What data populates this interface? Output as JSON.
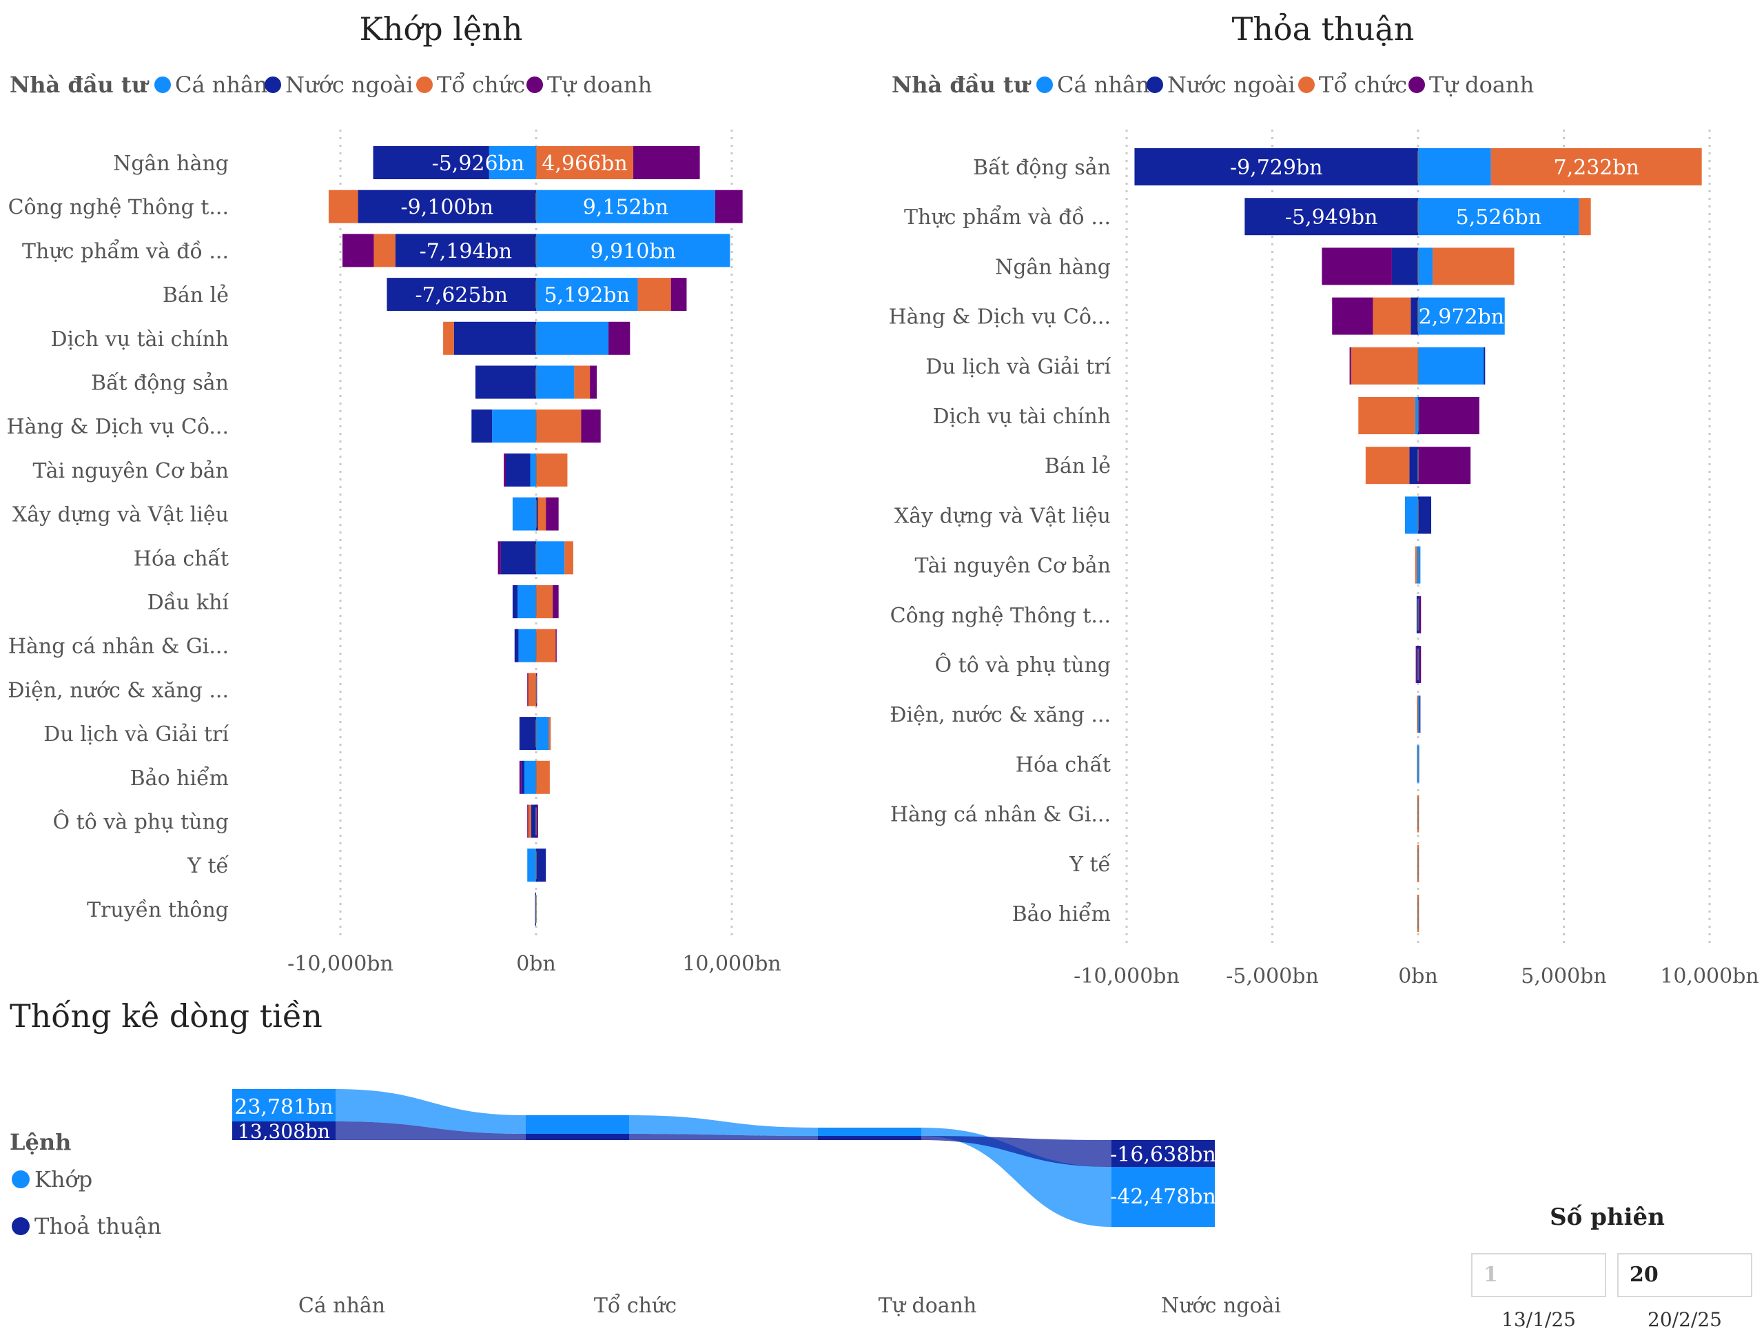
{
  "colors": {
    "ca_nhan": "#118DFF",
    "nuoc_ngoai": "#12239E",
    "to_chuc": "#E66C37",
    "tu_doanh": "#6B007B",
    "khop": "#118DFF",
    "thoa_thuan": "#12239E",
    "text": "#444444",
    "grid": "#c8c8c8"
  },
  "legend": {
    "title": "Nhà đầu tư",
    "items": [
      "Cá nhân",
      "Nước ngoài",
      "Tổ chức",
      "Tự doanh"
    ]
  },
  "chart_data": [
    {
      "type": "bar",
      "orientation": "horizontal-stacked-diverging",
      "title": "Khớp lệnh",
      "legend_title": "Nhà đầu tư",
      "xlim": [
        -10000,
        10000
      ],
      "xticks": [
        -10000,
        0,
        10000
      ],
      "xtick_labels": [
        "-10,000bn",
        "0bn",
        "10,000bn"
      ],
      "grid": "vertical dotted",
      "categories": [
        "Ngân hàng",
        "Công nghệ Thông t...",
        "Thực phẩm và đồ ...",
        "Bán lẻ",
        "Dịch vụ tài chính",
        "Bất động sản",
        "Hàng & Dịch vụ Cô...",
        "Tài nguyên Cơ bản",
        "Xây dựng và Vật liệu",
        "Hóa chất",
        "Dầu khí",
        "Hàng cá nhân & Gi...",
        "Điện, nước & xăng ...",
        "Du lịch và Giải trí",
        "Bảo hiểm",
        "Ô tô và phụ tùng",
        "Y tế",
        "Truyền thông"
      ],
      "series": [
        {
          "name": "Cá nhân",
          "values": [
            -2400,
            0,
            0,
            0,
            0,
            0,
            -2250,
            -300,
            -1200,
            0,
            -950,
            -900,
            150,
            0,
            -600,
            350,
            -450,
            0
          ]
        },
        {
          "name": "Nước ngoài",
          "values": [
            -5926,
            -9100,
            -7194,
            -7625,
            -4200,
            -3100,
            -1050,
            -1250,
            0,
            -1800,
            -250,
            -200,
            300,
            -850,
            -150,
            -250,
            0,
            -50
          ]
        },
        {
          "name": "Tổ chức",
          "values": [
            0,
            -1500,
            -1100,
            0,
            -550,
            0,
            0,
            0,
            0,
            0,
            0,
            0,
            -400,
            0,
            0,
            -150,
            0,
            0
          ]
        },
        {
          "name": "Tự doanh",
          "values": [
            0,
            0,
            -1600,
            0,
            0,
            0,
            0,
            -100,
            0,
            -150,
            0,
            0,
            -50,
            0,
            -100,
            -50,
            0,
            0
          ]
        },
        {
          "name": "Cá nhân",
          "values": [
            0,
            9152,
            9910,
            5192,
            3700,
            1950,
            0,
            0,
            0,
            1450,
            0,
            0,
            0,
            650,
            0,
            0,
            0,
            0
          ]
        },
        {
          "name": "Nước ngoài",
          "values": [
            0,
            0,
            0,
            0,
            0,
            0,
            0,
            0,
            100,
            0,
            0,
            0,
            0,
            0,
            0,
            0,
            500,
            0
          ]
        },
        {
          "name": "Tổ chức",
          "values": [
            4966,
            0,
            0,
            1700,
            0,
            800,
            2300,
            1600,
            400,
            450,
            850,
            1000,
            0,
            100,
            700,
            0,
            0,
            0
          ]
        },
        {
          "name": "Tự doanh",
          "values": [
            3400,
            1400,
            0,
            800,
            1100,
            350,
            1000,
            0,
            650,
            0,
            300,
            50,
            50,
            0,
            0,
            100,
            0,
            0
          ]
        }
      ],
      "data_labels": {
        "Ngân hàng": [
          "-5,926bn",
          "4,966bn"
        ],
        "Công nghệ Thông t...": [
          "-9,100bn",
          "9,152bn"
        ],
        "Thực phẩm và đồ ...": [
          "-7,194bn",
          "9,910bn"
        ],
        "Bán lẻ": [
          "-7,625bn",
          "5,192bn"
        ]
      }
    },
    {
      "type": "bar",
      "orientation": "horizontal-stacked-diverging",
      "title": "Thỏa thuận",
      "legend_title": "Nhà đầu tư",
      "xlim": [
        -10000,
        10000
      ],
      "xticks": [
        -10000,
        -5000,
        0,
        5000,
        10000
      ],
      "xtick_labels": [
        "-10,000bn",
        "-5,000bn",
        "0bn",
        "5,000bn",
        "10,000bn"
      ],
      "grid": "vertical dotted",
      "categories": [
        "Bất động sản",
        "Thực phẩm và đồ ...",
        "Ngân hàng",
        "Hàng & Dịch vụ Cô...",
        "Du lịch và Giải trí",
        "Dịch vụ tài chính",
        "Bán lẻ",
        "Xây dựng và Vật liệu",
        "Tài nguyên Cơ bản",
        "Công nghệ Thông t...",
        "Ô tô và phụ tùng",
        "Điện, nước & xăng ...",
        "Hóa chất",
        "Hàng cá nhân & Gi...",
        "Y tế",
        "Bảo hiểm"
      ],
      "series": [
        {
          "name": "Cá nhân",
          "values": [
            0,
            0,
            0,
            0,
            0,
            -100,
            0,
            -450,
            -50,
            0,
            0,
            0,
            -40,
            0,
            0,
            0
          ]
        },
        {
          "name": "Nước ngoài",
          "values": [
            -9729,
            -5949,
            -900,
            -250,
            0,
            0,
            -300,
            0,
            0,
            -50,
            -50,
            0,
            0,
            0,
            0,
            0
          ]
        },
        {
          "name": "Tổ chức",
          "values": [
            0,
            0,
            0,
            -1300,
            -2300,
            -1950,
            -1500,
            0,
            -50,
            0,
            0,
            -40,
            0,
            -30,
            -30,
            -30
          ]
        },
        {
          "name": "Tự doanh",
          "values": [
            0,
            0,
            -2400,
            -1400,
            -50,
            0,
            0,
            0,
            0,
            0,
            -30,
            0,
            0,
            0,
            0,
            0
          ]
        },
        {
          "name": "Cá nhân",
          "values": [
            2500,
            5526,
            500,
            2972,
            2250,
            0,
            0,
            0,
            80,
            0,
            0,
            50,
            40,
            0,
            0,
            0
          ]
        },
        {
          "name": "Nước ngoài",
          "values": [
            0,
            0,
            0,
            0,
            50,
            50,
            0,
            450,
            0,
            50,
            50,
            30,
            0,
            0,
            0,
            0
          ]
        },
        {
          "name": "Tổ chức",
          "values": [
            7232,
            400,
            2800,
            0,
            0,
            0,
            0,
            0,
            0,
            0,
            0,
            0,
            0,
            30,
            30,
            30
          ]
        },
        {
          "name": "Tự doanh",
          "values": [
            0,
            0,
            0,
            0,
            0,
            2050,
            1800,
            0,
            0,
            50,
            50,
            0,
            0,
            0,
            0,
            0
          ]
        }
      ],
      "data_labels": {
        "Bất động sản": [
          "-9,729bn",
          "7,232bn"
        ],
        "Thực phẩm và đồ ...": [
          "-5,949bn",
          "5,526bn"
        ],
        "Hàng & Dịch vụ Cô...": [
          "",
          "2,972bn"
        ]
      }
    },
    {
      "type": "area",
      "subtype": "ribbon",
      "title": "Thống kê dòng tiền",
      "legend_title": "Lệnh",
      "categories": [
        "Cá nhân",
        "Tổ chức",
        "Tự doanh",
        "Nước ngoài"
      ],
      "series": [
        {
          "name": "Khớp",
          "values": [
            23781,
            4500,
            3200,
            -42478
          ]
        },
        {
          "name": "Thoả thuận",
          "values": [
            13308,
            1000,
            300,
            -16638
          ]
        }
      ],
      "labels": {
        "start_khop": "23,781bn",
        "start_thoa": "13,308bn",
        "end_thoa": "-16,638bn",
        "end_khop": "-42,478bn"
      }
    }
  ],
  "slicer": {
    "title": "Số phiên",
    "from_value": "1",
    "to_value": "20",
    "from_date": "13/1/25",
    "to_date": "20/2/25"
  }
}
